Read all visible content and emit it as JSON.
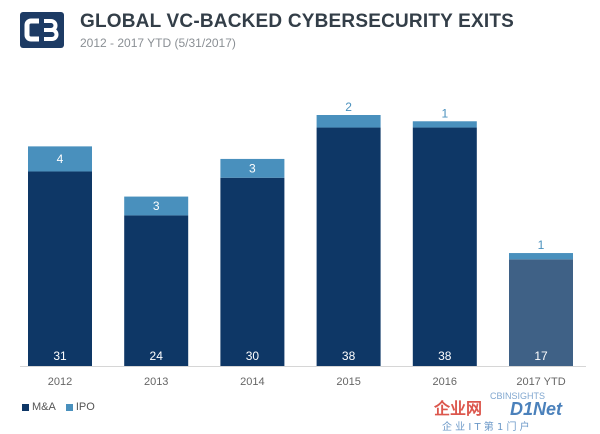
{
  "header": {
    "title": "GLOBAL VC-BACKED CYBERSECURITY EXITS",
    "subtitle": "2012 - 2017 YTD (5/31/2017)"
  },
  "colors": {
    "ma": "#0e3766",
    "ipo": "#4990bd",
    "ma_ytd": "#3f6186",
    "title": "#333e48",
    "logo": "#1d3b64",
    "watermark_red": "#d63a2e",
    "watermark_blue": "#2c6cb0"
  },
  "chart_data": {
    "type": "bar",
    "stacked": true,
    "categories": [
      "2012",
      "2013",
      "2014",
      "2015",
      "2016",
      "2017 YTD"
    ],
    "series": [
      {
        "name": "M&A",
        "values": [
          31,
          24,
          30,
          38,
          38,
          17
        ]
      },
      {
        "name": "IPO",
        "values": [
          4,
          3,
          3,
          2,
          1,
          1
        ]
      }
    ],
    "ylim": [
      0,
      40
    ],
    "grid": false,
    "legend": "bottom-left"
  },
  "legend": {
    "items": [
      {
        "label": "M&A",
        "color_key": "ma"
      },
      {
        "label": "IPO",
        "color_key": "ipo"
      }
    ]
  },
  "watermark": {
    "brand": "CBINSIGHTS",
    "site_name": "企业网",
    "site_mark": "D1Net",
    "tagline": "企 业 I T 第 1 门 户"
  }
}
